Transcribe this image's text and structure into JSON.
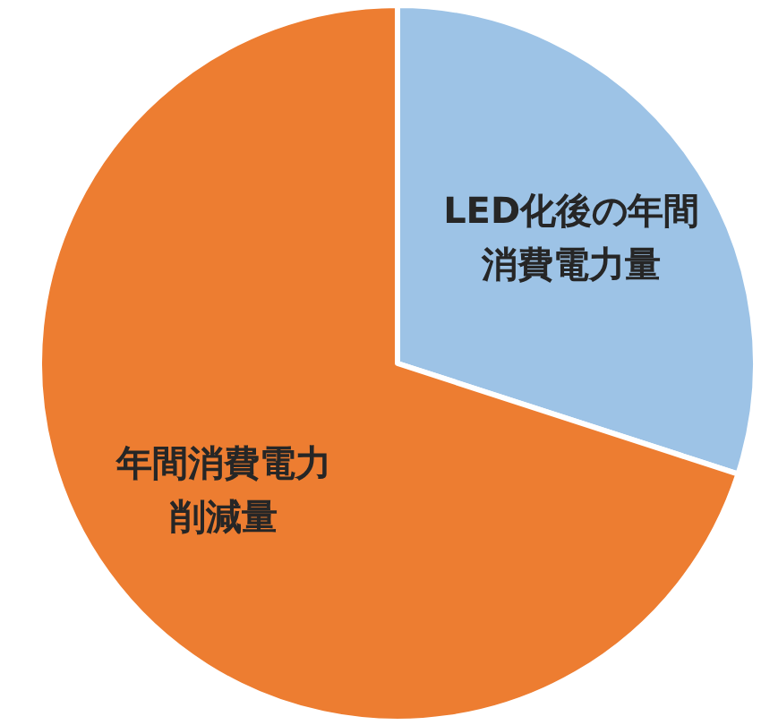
{
  "chart_data": {
    "type": "pie",
    "categories": [
      "LED化後の年間消費電力量",
      "年間消費電力削減量"
    ],
    "values": [
      30,
      70
    ],
    "colors": [
      "#9dc3e6",
      "#ed7d31"
    ]
  }
}
